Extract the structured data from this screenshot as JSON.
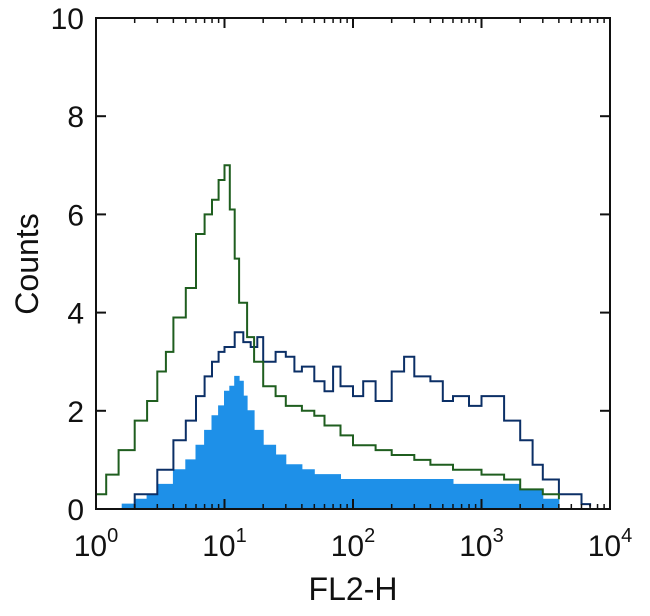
{
  "chart_data": {
    "type": "area",
    "xlabel": "FL2-H",
    "ylabel": "Counts",
    "xscale": "log",
    "xlim": [
      1,
      10000
    ],
    "ylim": [
      0,
      10
    ],
    "xticks": [
      {
        "base": "10",
        "exp": "0",
        "value": 1
      },
      {
        "base": "10",
        "exp": "1",
        "value": 10
      },
      {
        "base": "10",
        "exp": "2",
        "value": 100
      },
      {
        "base": "10",
        "exp": "3",
        "value": 1000
      },
      {
        "base": "10",
        "exp": "4",
        "value": 10000
      }
    ],
    "yticks": [
      "0",
      "2",
      "4",
      "6",
      "8",
      "10"
    ],
    "grid": false,
    "colors": {
      "filled": "#1e90e8",
      "dark_outline": "#0b2f66",
      "green_outline": "#1f5e1f",
      "axis": "#111111"
    },
    "series": [
      {
        "style": "filled",
        "x": [
          1.2,
          1.6,
          2,
          2.5,
          3,
          4,
          5,
          6,
          7,
          8,
          9,
          10,
          11,
          12,
          13,
          14,
          15,
          17,
          20,
          25,
          30,
          40,
          50,
          60,
          80,
          100,
          150,
          200,
          300,
          400,
          600,
          800,
          1000,
          1500,
          2000,
          3000,
          4000
        ],
        "values": [
          0,
          0.1,
          0.2,
          0.3,
          0.5,
          0.8,
          1.0,
          1.3,
          1.6,
          1.9,
          2.1,
          2.4,
          2.5,
          2.7,
          2.6,
          2.3,
          2.0,
          1.6,
          1.3,
          1.1,
          0.9,
          0.8,
          0.7,
          0.7,
          0.6,
          0.6,
          0.6,
          0.6,
          0.6,
          0.6,
          0.5,
          0.5,
          0.5,
          0.5,
          0.4,
          0.2,
          0
        ]
      },
      {
        "style": "dark outline",
        "x": [
          1.5,
          2,
          3,
          4,
          5,
          6,
          7,
          8,
          9,
          10,
          12,
          14,
          16,
          18,
          20,
          25,
          30,
          35,
          40,
          50,
          60,
          70,
          80,
          100,
          120,
          150,
          200,
          250,
          300,
          400,
          500,
          600,
          800,
          1000,
          1500,
          2000,
          2500,
          3000,
          4000,
          5000,
          6000,
          7000
        ],
        "values": [
          0,
          0.3,
          0.8,
          1.4,
          1.8,
          2.3,
          2.7,
          3.0,
          3.2,
          3.3,
          3.6,
          3.4,
          3.3,
          3.5,
          3.0,
          3.2,
          3.1,
          2.8,
          2.9,
          2.6,
          2.4,
          2.9,
          2.5,
          2.3,
          2.6,
          2.2,
          2.8,
          3.1,
          2.7,
          2.6,
          2.2,
          2.3,
          2.1,
          2.3,
          1.8,
          1.4,
          0.9,
          0.6,
          0.3,
          0.3,
          0.1,
          0.05
        ]
      },
      {
        "style": "green outline",
        "x": [
          1,
          1.2,
          1.5,
          2,
          2.5,
          3,
          3.5,
          4,
          5,
          6,
          7,
          8,
          9,
          10,
          11,
          12,
          13,
          15,
          17,
          20,
          25,
          30,
          40,
          50,
          60,
          80,
          100,
          150,
          200,
          300,
          400,
          600,
          800,
          1000,
          1500,
          2000,
          3000,
          4000
        ],
        "values": [
          0.3,
          0.7,
          1.2,
          1.8,
          2.2,
          2.8,
          3.2,
          3.9,
          4.5,
          5.6,
          6.0,
          6.3,
          6.7,
          7.0,
          6.1,
          5.1,
          4.2,
          3.5,
          3.0,
          2.5,
          2.3,
          2.1,
          2.0,
          1.9,
          1.7,
          1.5,
          1.3,
          1.2,
          1.1,
          1.0,
          0.9,
          0.8,
          0.8,
          0.7,
          0.6,
          0.4,
          0.3,
          0.2
        ]
      }
    ]
  }
}
